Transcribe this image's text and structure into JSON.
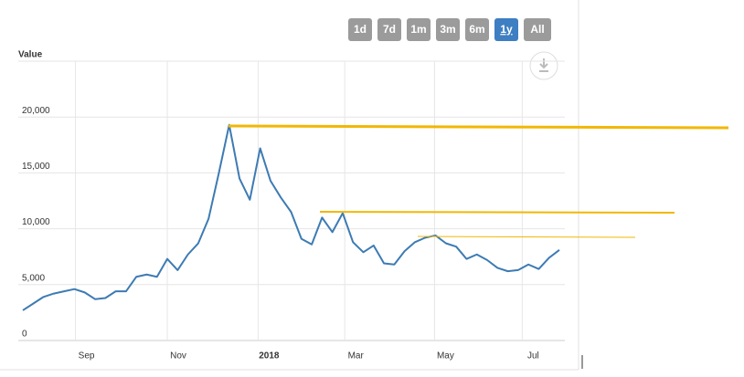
{
  "range_buttons": [
    "1d",
    "7d",
    "1m",
    "3m",
    "6m",
    "1y",
    "All"
  ],
  "selected_range": 5,
  "chart_data": {
    "type": "line",
    "ylabel": "Value",
    "x": [
      0,
      1,
      2,
      3,
      4,
      5,
      6,
      7,
      8,
      9,
      10,
      11,
      12,
      13,
      14,
      15,
      16,
      17,
      18,
      19,
      20,
      21,
      22,
      23,
      24,
      25,
      26,
      27,
      28,
      29,
      30,
      31,
      32,
      33,
      34,
      35,
      36,
      37,
      38,
      39,
      40,
      41,
      42,
      43,
      44,
      45,
      46,
      47,
      48,
      49,
      50,
      51,
      52
    ],
    "series": [
      {
        "name": "Value",
        "color": "#3d7bb3",
        "values": [
          2700,
          3300,
          3900,
          4200,
          4400,
          4600,
          4300,
          3700,
          3800,
          4400,
          4400,
          5700,
          5900,
          5700,
          7300,
          6300,
          7700,
          8700,
          10900,
          15000,
          19300,
          14500,
          12600,
          17200,
          14300,
          12800,
          11500,
          9100,
          8600,
          11000,
          9700,
          11400,
          8800,
          7900,
          8500,
          6900,
          6800,
          8000,
          8800,
          9200,
          9400,
          8700,
          8400,
          7300,
          7700,
          7200,
          6500,
          6200,
          6300,
          6800,
          6400,
          7400,
          8100
        ]
      }
    ],
    "xlim": [
      0,
      52
    ],
    "xticks": [
      {
        "value": 5.1,
        "label": "Sep"
      },
      {
        "value": 14,
        "label": "Nov"
      },
      {
        "value": 22.8,
        "label": "2018"
      },
      {
        "value": 31.2,
        "label": "Mar"
      },
      {
        "value": 39.9,
        "label": "May"
      },
      {
        "value": 48.4,
        "label": "Jul"
      }
    ],
    "ylim": [
      0,
      25000
    ],
    "yticks": [
      0,
      {
        "value": 5000,
        "label": "5,000"
      },
      {
        "value": 10000,
        "label": "10,000"
      },
      {
        "value": 15000,
        "label": "15,000"
      },
      {
        "value": 20000,
        "label": "20,000"
      }
    ],
    "grid": true
  }
}
